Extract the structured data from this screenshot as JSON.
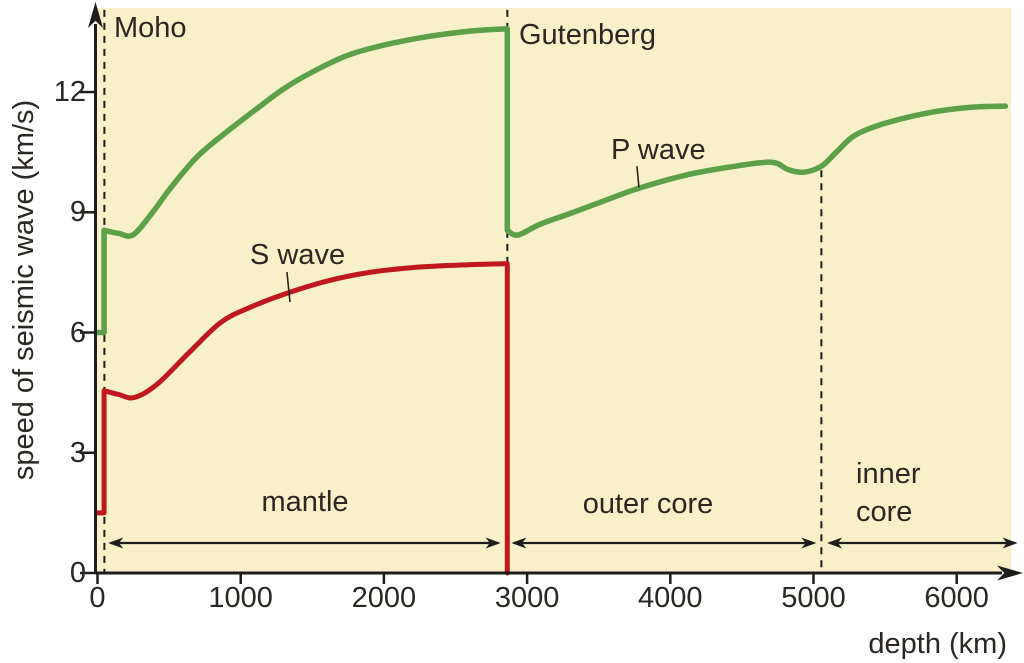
{
  "chart_data": {
    "type": "line",
    "title": "",
    "xlabel": "depth (km)",
    "ylabel": "speed of seismic wave (km/s)",
    "xlim": [
      0,
      6470
    ],
    "ylim": [
      0,
      14.3
    ],
    "x_ticks": [
      0,
      1000,
      2000,
      3000,
      4000,
      5000,
      6000
    ],
    "y_ticks": [
      0,
      3,
      6,
      9,
      12
    ],
    "grid": false,
    "legend": "inline-callouts",
    "plot_bg": "#f7f0c9",
    "axis_color": "#1d1d1b",
    "text_color": "#2b2723",
    "series": [
      {
        "name": "P wave",
        "color": "#5ca04a",
        "width": 5.5,
        "segments": [
          [
            [
              0,
              6.0
            ],
            [
              46,
              6.0
            ]
          ],
          [
            [
              46,
              8.55
            ],
            [
              150,
              8.47
            ],
            [
              250,
              8.44
            ],
            [
              385,
              9.0
            ],
            [
              520,
              9.65
            ],
            [
              700,
              10.4
            ],
            [
              900,
              11.0
            ],
            [
              1100,
              11.55
            ],
            [
              1300,
              12.08
            ],
            [
              1500,
              12.5
            ],
            [
              1750,
              12.92
            ],
            [
              2000,
              13.17
            ],
            [
              2300,
              13.38
            ],
            [
              2600,
              13.52
            ],
            [
              2862,
              13.58
            ]
          ],
          [
            [
              2862,
              8.55
            ],
            [
              2935,
              8.43
            ],
            [
              3090,
              8.7
            ],
            [
              3300,
              8.97
            ],
            [
              3510,
              9.25
            ],
            [
              3780,
              9.6
            ],
            [
              4100,
              9.92
            ],
            [
              4400,
              10.12
            ],
            [
              4700,
              10.25
            ],
            [
              4820,
              10.07
            ],
            [
              4930,
              10.0
            ],
            [
              5055,
              10.15
            ],
            [
              5160,
              10.5
            ],
            [
              5290,
              10.92
            ],
            [
              5500,
              11.22
            ],
            [
              5800,
              11.48
            ],
            [
              6100,
              11.62
            ],
            [
              6340,
              11.65
            ]
          ]
        ]
      },
      {
        "name": "S wave",
        "color": "#c0181f",
        "width": 5,
        "segments": [
          [
            [
              0,
              1.5
            ],
            [
              46,
              1.5
            ]
          ],
          [
            [
              46,
              4.55
            ],
            [
              150,
              4.45
            ],
            [
              260,
              4.38
            ],
            [
              420,
              4.72
            ],
            [
              640,
              5.5
            ],
            [
              860,
              6.25
            ],
            [
              1060,
              6.62
            ],
            [
              1300,
              6.95
            ],
            [
              1600,
              7.28
            ],
            [
              1900,
              7.5
            ],
            [
              2200,
              7.62
            ],
            [
              2500,
              7.68
            ],
            [
              2862,
              7.72
            ]
          ],
          [
            [
              2862,
              7.72
            ],
            [
              2862,
              0
            ]
          ]
        ]
      }
    ],
    "boundaries": [
      {
        "name": "Moho",
        "label": "Moho",
        "depth": 48,
        "top_speed": 14.05
      },
      {
        "name": "Gutenberg",
        "label": "Gutenberg",
        "depth": 2862,
        "top_speed": 14.05
      },
      {
        "name": "inner-core-boundary",
        "label": "",
        "depth": 5055,
        "top_speed": 10.05
      }
    ],
    "regions": [
      {
        "label": "mantle",
        "from": 75,
        "to": 2815
      },
      {
        "label": "outer core",
        "from": 2890,
        "to": 5020
      },
      {
        "label": "inner core",
        "from": 5095,
        "to": 6425
      }
    ],
    "callouts": [
      {
        "label": "P wave",
        "pointer": [
          [
            3767,
            10.15
          ],
          [
            3781,
            9.62
          ]
        ]
      },
      {
        "label": "S wave",
        "pointer": [
          [
            1323,
            7.51
          ],
          [
            1344,
            6.76
          ]
        ]
      }
    ]
  }
}
